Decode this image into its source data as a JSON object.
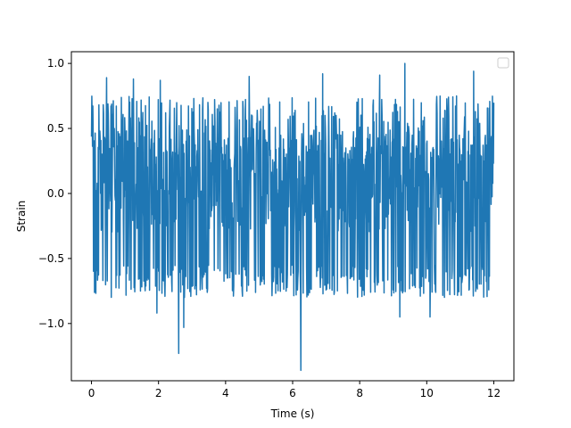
{
  "chart_data": {
    "type": "line",
    "title": "",
    "xlabel": "Time (s)",
    "ylabel": "Strain",
    "xlim": [
      -0.6,
      12.6
    ],
    "ylim": [
      -1.44,
      1.09
    ],
    "xticks": [
      0,
      2,
      4,
      6,
      8,
      10,
      12
    ],
    "xtick_labels": [
      "0",
      "2",
      "4",
      "6",
      "8",
      "10",
      "12"
    ],
    "yticks": [
      -1.0,
      -0.5,
      0.0,
      0.5,
      1.0
    ],
    "ytick_labels": [
      "−1.0",
      "−0.5",
      "0.0",
      "0.5",
      "1.0"
    ],
    "grid": false,
    "legend": {
      "placement": "top-right",
      "entries": []
    },
    "series": [
      {
        "color": "#1f77b4",
        "x_start": 0,
        "x_end": 12,
        "samples": 1200,
        "envelope": {
          "typical_upper": 0.45,
          "typical_lower": -0.3,
          "peak_max": 1.0,
          "peak_min": -1.36
        },
        "notable_peaks": [
          {
            "x": 0.45,
            "y": 0.89
          },
          {
            "x": 1.25,
            "y": 0.88
          },
          {
            "x": 2.05,
            "y": 0.87
          },
          {
            "x": 4.7,
            "y": 0.9
          },
          {
            "x": 6.9,
            "y": 0.92
          },
          {
            "x": 8.6,
            "y": 0.91
          },
          {
            "x": 9.35,
            "y": 1.0
          },
          {
            "x": 11.4,
            "y": 0.94
          }
        ],
        "notable_troughs": [
          {
            "x": 1.95,
            "y": -0.92
          },
          {
            "x": 2.6,
            "y": -1.23
          },
          {
            "x": 2.75,
            "y": -1.03
          },
          {
            "x": 6.25,
            "y": -1.36
          },
          {
            "x": 9.2,
            "y": -0.95
          },
          {
            "x": 10.1,
            "y": -0.95
          }
        ]
      }
    ]
  }
}
